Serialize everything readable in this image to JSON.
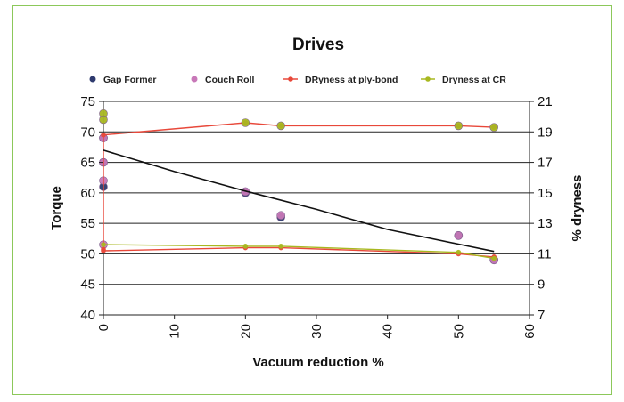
{
  "chart_data": {
    "type": "scatter",
    "title": "Drives",
    "xlabel": "Vacuum reduction %",
    "ylabel": "Torque",
    "y2label": "% dryness",
    "xlim": [
      0,
      60
    ],
    "ylim": [
      40,
      75
    ],
    "y2lim": [
      7,
      21
    ],
    "x_ticks": [
      0,
      10,
      20,
      30,
      40,
      50,
      60
    ],
    "y_ticks": [
      40,
      45,
      50,
      55,
      60,
      65,
      70,
      75
    ],
    "y2_ticks": [
      7,
      9,
      11,
      13,
      15,
      17,
      19,
      21
    ],
    "grid": "horizontal",
    "legend_position": "top",
    "series": [
      {
        "name": "Gap Former",
        "kind": "markers",
        "axis": "left",
        "color": "#2e3a6e",
        "x": [
          0,
          0,
          0,
          20,
          25,
          50,
          55
        ],
        "y": [
          61,
          65,
          69,
          60,
          56,
          53,
          49
        ]
      },
      {
        "name": "Couch Roll",
        "kind": "markers",
        "axis": "left",
        "color": "#c878b8",
        "x": [
          0,
          0,
          0,
          0,
          20,
          25,
          50,
          55
        ],
        "y": [
          51.5,
          62,
          65,
          69,
          60.2,
          56.3,
          53,
          49
        ]
      },
      {
        "name": "DRyness at ply-bond",
        "kind": "line-markers",
        "axis": "right",
        "color": "#e8483a",
        "x": [
          0,
          0,
          20,
          25,
          50,
          55
        ],
        "y": [
          11.3,
          18.8,
          19.6,
          19.4,
          19.4,
          19.3
        ]
      },
      {
        "name": "DRyness at ply-bond",
        "kind": "line-markers",
        "axis": "right",
        "color": "#e8483a",
        "x": [
          0,
          20,
          25,
          50,
          55
        ],
        "y": [
          11.2,
          11.4,
          11.4,
          11.0,
          10.8
        ]
      },
      {
        "name": "Dryness at CR",
        "kind": "line-markers",
        "axis": "right",
        "color": "#a8b820",
        "x": [
          0,
          20,
          25,
          50,
          55
        ],
        "y": [
          11.6,
          11.5,
          11.5,
          11.1,
          10.7
        ]
      },
      {
        "name": "Dryness at CR",
        "kind": "markers",
        "axis": "right",
        "color": "#a8b820",
        "x": [
          0,
          0,
          20,
          25,
          50,
          55
        ],
        "y": [
          20.2,
          19.8,
          19.6,
          19.4,
          19.4,
          19.3
        ]
      },
      {
        "name": "Trend",
        "kind": "line",
        "axis": "left",
        "color": "#111111",
        "x": [
          0,
          10,
          20,
          30,
          40,
          50,
          55
        ],
        "y": [
          67.0,
          63.5,
          60.3,
          57.3,
          54.0,
          51.6,
          50.4
        ]
      }
    ],
    "legend": [
      {
        "label": "Gap Former",
        "color": "#2e3a6e",
        "style": "marker"
      },
      {
        "label": "Couch Roll",
        "color": "#c878b8",
        "style": "marker"
      },
      {
        "label": "DRyness at ply-bond",
        "color": "#e8483a",
        "style": "line-marker"
      },
      {
        "label": "Dryness at CR",
        "color": "#a8b820",
        "style": "line-marker"
      }
    ]
  }
}
